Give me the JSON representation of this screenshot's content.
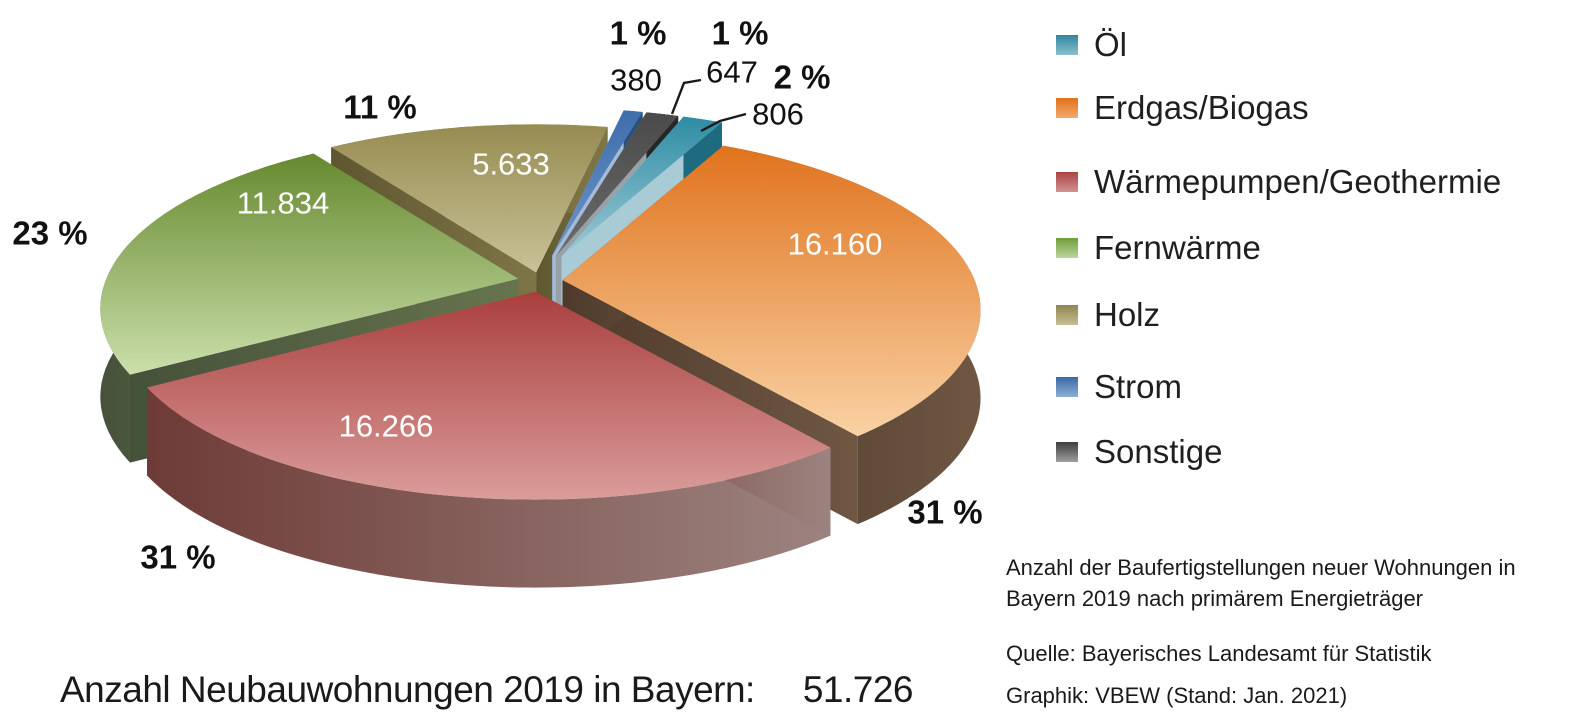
{
  "chart_data": {
    "type": "pie",
    "style": "3d-exploded",
    "title": "Anzahl der Baufertigstellungen neuer Wohnungen in Bayern 2019 nach primärem Energieträger",
    "legend_position": "right",
    "categories": [
      "Öl",
      "Erdgas/Biogas",
      "Wärmepumpen/Geothermie",
      "Fernwärme",
      "Holz",
      "Strom",
      "Sonstige"
    ],
    "values": [
      806,
      16160,
      16266,
      11834,
      5633,
      380,
      647
    ],
    "percents": [
      2,
      31,
      31,
      23,
      11,
      1,
      1
    ],
    "percent_labels": [
      "2 %",
      "31 %",
      "31 %",
      "23 %",
      "11 %",
      "1 %",
      "1 %"
    ],
    "value_labels": [
      "806",
      "16.160",
      "16.266",
      "11.834",
      "5.633",
      "380",
      "647"
    ],
    "total": 51726,
    "total_display": "51.726",
    "colors": [
      {
        "face": "#2E8CA4",
        "faceLight": "#9CCBD6",
        "sideDark": "#1E6B80",
        "sideLight": "#A9CBD6",
        "legend": [
          "#2F86A0",
          "#8CC0CD"
        ]
      },
      {
        "face": "#E0731D",
        "faceLight": "#F9D2A4",
        "sideDark": "#4E3A2B",
        "sideLight": "#6F5743",
        "legend": [
          "#E0701A",
          "#F2AC6E"
        ]
      },
      {
        "face": "#A93F3D",
        "faceLight": "#DA9C9A",
        "sideDark": "#6E3B37",
        "sideLight": "#9C837F",
        "legend": [
          "#AA4341",
          "#D09392"
        ]
      },
      {
        "face": "#66892F",
        "faceLight": "#CBDFAB",
        "sideDark": "#45523A",
        "sideLight": "#66744E",
        "legend": [
          "#6F9C3B",
          "#BED69C"
        ]
      },
      {
        "face": "#968C51",
        "faceLight": "#C9C197",
        "sideDark": "#5E562F",
        "sideLight": "#7E7547",
        "legend": [
          "#8F8650",
          "#C6BE95"
        ]
      },
      {
        "face": "#3E6EAC",
        "faceLight": "#6E96C8",
        "sideDark": "#2A4E7E",
        "sideLight": "#A3BAD9",
        "legend": [
          "#3A69A6",
          "#8FAED4"
        ]
      },
      {
        "face": "#4A4A4A",
        "faceLight": "#6B6B6B",
        "sideDark": "#262626",
        "sideLight": "#99A1A8",
        "legend": [
          "#3D3D3D",
          "#9E9E9E"
        ]
      }
    ]
  },
  "caption": {
    "description": "Anzahl der Baufertigstellungen neuer Wohnungen in Bayern 2019 nach primärem Energieträger",
    "source": "Quelle: Bayerisches Landesamt für Statistik",
    "credit": "Graphik: VBEW (Stand: Jan. 2021)"
  },
  "footer": {
    "label": "Anzahl Neubauwohnungen 2019 in Bayern:",
    "value": "51.726"
  }
}
